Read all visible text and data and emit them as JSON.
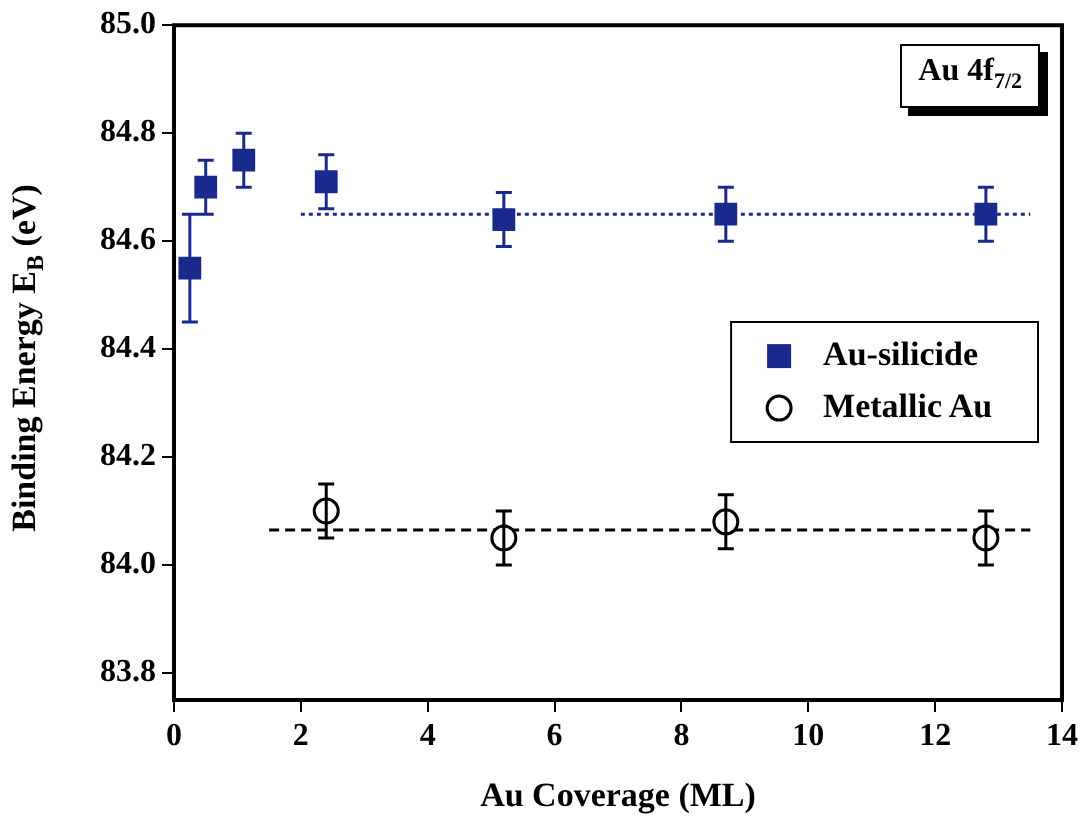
{
  "chart_data": {
    "type": "scatter",
    "xlabel": "Au Coverage (ML)",
    "ylabel": "Binding Energy E$_{B}$ (eV)",
    "annotations": [
      "Au 4f$_{7/2}$"
    ],
    "xlim": [
      0,
      14
    ],
    "xticks": [
      0,
      2,
      4,
      6,
      8,
      10,
      12,
      14
    ],
    "ylim": [
      83.75,
      85.0
    ],
    "yticks": [
      83.8,
      {
        "value": 84,
        "label": "84.0"
      },
      84.2,
      84.4,
      84.6,
      84.8,
      {
        "value": 85,
        "label": "85.0"
      }
    ],
    "grid": false,
    "legend": "right",
    "series": [
      {
        "name": "Au-silicide",
        "color": "#1a2a8c",
        "marker": "square",
        "x": [
          0.25,
          0.5,
          1.1,
          2.4,
          5.2,
          8.7,
          12.8
        ],
        "values": [
          84.55,
          84.7,
          84.75,
          84.71,
          84.64,
          84.65,
          84.65
        ],
        "errors": [
          0.1,
          0.05,
          0.05,
          0.05,
          0.05,
          0.05,
          0.05
        ]
      },
      {
        "name": "Metallic Au",
        "color": "#000000",
        "marker": "circle",
        "x": [
          2.4,
          5.2,
          8.7,
          12.8
        ],
        "values": [
          84.1,
          84.05,
          84.08,
          84.05
        ],
        "errors": [
          0.05,
          0.05,
          0.05,
          0.05
        ]
      },
      {
        "type": "line",
        "color": "#1a2a8c",
        "line_style": "dotted",
        "x": [
          2,
          13.5
        ],
        "values": [
          84.65,
          84.65
        ]
      },
      {
        "type": "line",
        "color": "#000000",
        "line_style": "dashed",
        "x": [
          1.5,
          13.5
        ],
        "values": [
          84.065,
          84.065
        ]
      }
    ]
  }
}
